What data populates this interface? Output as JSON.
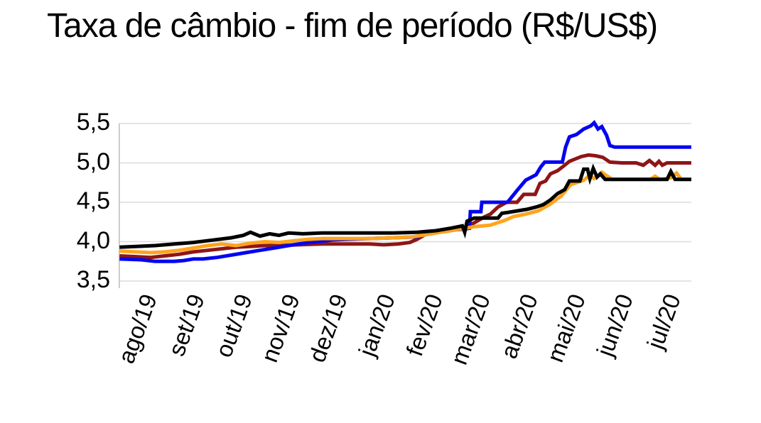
{
  "palette": {
    "background": "#ffffff",
    "grid": "#dcdcdc",
    "axis": "#c0c0c0",
    "text": "#000000"
  },
  "chart_data": {
    "type": "line",
    "title": "Taxa de câmbio - fim de período (R$/US$)",
    "subtitle": "",
    "legend": "none",
    "grid": true,
    "y_axis": {
      "min": 3.5,
      "max": 5.5,
      "step": 0.5,
      "decimal_separator": ",",
      "ticks": [
        {
          "label": "5,5",
          "value": 5.5
        },
        {
          "label": "5,0",
          "value": 5.0
        },
        {
          "label": "4,5",
          "value": 4.5
        },
        {
          "label": "4,0",
          "value": 4.0
        },
        {
          "label": "3,5",
          "value": 3.5
        }
      ]
    },
    "x_axis": {
      "tick_labels": [
        "ago/19",
        "set/19",
        "out/19",
        "nov/19",
        "dez/19",
        "jan/20",
        "fev/20",
        "mar/20",
        "abr/20",
        "mai/20",
        "jun/20",
        "jul/20"
      ],
      "rotation_deg": -70,
      "domain_months": [
        -0.25,
        11.76
      ]
    },
    "series": [
      {
        "id": "vermelho-escuro",
        "name": "linha vermelho-escura",
        "color": "#8E1616",
        "points": [
          [
            -0.25,
            3.82
          ],
          [
            0.1,
            3.81
          ],
          [
            0.4,
            3.8
          ],
          [
            0.7,
            3.82
          ],
          [
            1.0,
            3.84
          ],
          [
            1.3,
            3.87
          ],
          [
            1.6,
            3.89
          ],
          [
            1.9,
            3.91
          ],
          [
            2.2,
            3.93
          ],
          [
            2.5,
            3.94
          ],
          [
            2.8,
            3.95
          ],
          [
            3.1,
            3.95
          ],
          [
            3.5,
            3.96
          ],
          [
            4.0,
            3.97
          ],
          [
            4.5,
            3.97
          ],
          [
            5.0,
            3.97
          ],
          [
            5.3,
            3.96
          ],
          [
            5.6,
            3.97
          ],
          [
            5.85,
            3.99
          ],
          [
            6.0,
            4.03
          ],
          [
            6.2,
            4.1
          ],
          [
            6.4,
            4.12
          ],
          [
            6.6,
            4.13
          ],
          [
            6.8,
            4.15
          ],
          [
            7.0,
            4.18
          ],
          [
            7.2,
            4.24
          ],
          [
            7.4,
            4.31
          ],
          [
            7.54,
            4.35
          ],
          [
            7.7,
            4.44
          ],
          [
            7.88,
            4.5
          ],
          [
            8.1,
            4.5
          ],
          [
            8.24,
            4.6
          ],
          [
            8.48,
            4.6
          ],
          [
            8.58,
            4.74
          ],
          [
            8.7,
            4.77
          ],
          [
            8.8,
            4.86
          ],
          [
            8.95,
            4.9
          ],
          [
            9.1,
            4.97
          ],
          [
            9.2,
            5.02
          ],
          [
            9.45,
            5.08
          ],
          [
            9.6,
            5.1
          ],
          [
            9.75,
            5.09
          ],
          [
            9.9,
            5.07
          ],
          [
            10.05,
            5.01
          ],
          [
            10.3,
            5.0
          ],
          [
            10.6,
            5.0
          ],
          [
            10.75,
            4.97
          ],
          [
            10.88,
            5.03
          ],
          [
            11.0,
            4.97
          ],
          [
            11.08,
            5.02
          ],
          [
            11.15,
            4.97
          ],
          [
            11.25,
            5.0
          ],
          [
            11.76,
            5.0
          ]
        ]
      },
      {
        "id": "azul",
        "name": "linha azul",
        "color": "#0505F0",
        "points": [
          [
            -0.25,
            3.78
          ],
          [
            0.2,
            3.77
          ],
          [
            0.5,
            3.75
          ],
          [
            0.9,
            3.75
          ],
          [
            1.1,
            3.76
          ],
          [
            1.3,
            3.78
          ],
          [
            1.5,
            3.78
          ],
          [
            1.8,
            3.8
          ],
          [
            2.1,
            3.83
          ],
          [
            2.4,
            3.86
          ],
          [
            2.7,
            3.89
          ],
          [
            3.0,
            3.92
          ],
          [
            3.3,
            3.95
          ],
          [
            3.6,
            3.98
          ],
          [
            3.9,
            4.0
          ],
          [
            4.2,
            4.02
          ],
          [
            4.5,
            4.03
          ],
          [
            5.0,
            4.04
          ],
          [
            5.5,
            4.05
          ],
          [
            6.0,
            4.06
          ],
          [
            6.2,
            4.1
          ],
          [
            6.5,
            4.13
          ],
          [
            6.8,
            4.15
          ],
          [
            7.0,
            4.16
          ],
          [
            7.1,
            4.17
          ],
          [
            7.12,
            4.38
          ],
          [
            7.34,
            4.38
          ],
          [
            7.36,
            4.5
          ],
          [
            7.9,
            4.5
          ],
          [
            8.1,
            4.65
          ],
          [
            8.28,
            4.78
          ],
          [
            8.5,
            4.85
          ],
          [
            8.6,
            4.95
          ],
          [
            8.68,
            5.01
          ],
          [
            9.05,
            5.01
          ],
          [
            9.12,
            5.2
          ],
          [
            9.2,
            5.33
          ],
          [
            9.35,
            5.36
          ],
          [
            9.5,
            5.43
          ],
          [
            9.65,
            5.47
          ],
          [
            9.72,
            5.51
          ],
          [
            9.8,
            5.43
          ],
          [
            9.88,
            5.46
          ],
          [
            9.98,
            5.35
          ],
          [
            10.05,
            5.22
          ],
          [
            10.15,
            5.2
          ],
          [
            11.76,
            5.2
          ]
        ]
      },
      {
        "id": "laranja",
        "name": "linha laranja",
        "color": "#FFA41E",
        "points": [
          [
            -0.25,
            3.88
          ],
          [
            0.1,
            3.87
          ],
          [
            0.4,
            3.86
          ],
          [
            0.7,
            3.87
          ],
          [
            1.0,
            3.89
          ],
          [
            1.3,
            3.92
          ],
          [
            1.6,
            3.95
          ],
          [
            1.9,
            3.97
          ],
          [
            2.2,
            3.95
          ],
          [
            2.5,
            3.98
          ],
          [
            2.8,
            4.0
          ],
          [
            3.1,
            3.99
          ],
          [
            3.4,
            4.01
          ],
          [
            3.7,
            4.03
          ],
          [
            4.0,
            4.04
          ],
          [
            4.5,
            4.04
          ],
          [
            5.0,
            4.04
          ],
          [
            5.5,
            4.05
          ],
          [
            5.9,
            4.06
          ],
          [
            6.2,
            4.09
          ],
          [
            6.5,
            4.12
          ],
          [
            6.8,
            4.15
          ],
          [
            7.0,
            4.17
          ],
          [
            7.2,
            4.19
          ],
          [
            7.54,
            4.21
          ],
          [
            7.84,
            4.27
          ],
          [
            8.03,
            4.32
          ],
          [
            8.28,
            4.35
          ],
          [
            8.54,
            4.39
          ],
          [
            8.78,
            4.47
          ],
          [
            9.03,
            4.58
          ],
          [
            9.22,
            4.72
          ],
          [
            9.35,
            4.75
          ],
          [
            9.5,
            4.78
          ],
          [
            9.62,
            4.84
          ],
          [
            9.72,
            4.8
          ],
          [
            9.88,
            4.88
          ],
          [
            10.0,
            4.83
          ],
          [
            10.1,
            4.79
          ],
          [
            10.9,
            4.79
          ],
          [
            11.0,
            4.83
          ],
          [
            11.1,
            4.79
          ],
          [
            11.33,
            4.81
          ],
          [
            11.45,
            4.87
          ],
          [
            11.55,
            4.79
          ],
          [
            11.76,
            4.79
          ]
        ]
      },
      {
        "id": "preto",
        "name": "linha preta",
        "color": "#000000",
        "points": [
          [
            -0.25,
            3.93
          ],
          [
            0.1,
            3.94
          ],
          [
            0.5,
            3.95
          ],
          [
            0.9,
            3.97
          ],
          [
            1.3,
            3.99
          ],
          [
            1.7,
            4.02
          ],
          [
            2.1,
            4.05
          ],
          [
            2.35,
            4.08
          ],
          [
            2.5,
            4.12
          ],
          [
            2.7,
            4.07
          ],
          [
            2.9,
            4.1
          ],
          [
            3.1,
            4.08
          ],
          [
            3.3,
            4.11
          ],
          [
            3.6,
            4.1
          ],
          [
            4.0,
            4.11
          ],
          [
            4.5,
            4.11
          ],
          [
            5.0,
            4.11
          ],
          [
            5.5,
            4.11
          ],
          [
            6.0,
            4.12
          ],
          [
            6.4,
            4.14
          ],
          [
            6.7,
            4.17
          ],
          [
            6.95,
            4.2
          ],
          [
            7.0,
            4.12
          ],
          [
            7.05,
            4.26
          ],
          [
            7.2,
            4.3
          ],
          [
            7.7,
            4.3
          ],
          [
            7.78,
            4.36
          ],
          [
            7.9,
            4.37
          ],
          [
            8.3,
            4.41
          ],
          [
            8.5,
            4.44
          ],
          [
            8.65,
            4.47
          ],
          [
            8.8,
            4.53
          ],
          [
            8.95,
            4.61
          ],
          [
            9.1,
            4.66
          ],
          [
            9.2,
            4.77
          ],
          [
            9.42,
            4.77
          ],
          [
            9.5,
            4.92
          ],
          [
            9.58,
            4.92
          ],
          [
            9.63,
            4.8
          ],
          [
            9.7,
            4.93
          ],
          [
            9.78,
            4.82
          ],
          [
            9.85,
            4.86
          ],
          [
            9.95,
            4.79
          ],
          [
            11.25,
            4.79
          ],
          [
            11.33,
            4.89
          ],
          [
            11.42,
            4.79
          ],
          [
            11.76,
            4.79
          ]
        ]
      }
    ]
  }
}
